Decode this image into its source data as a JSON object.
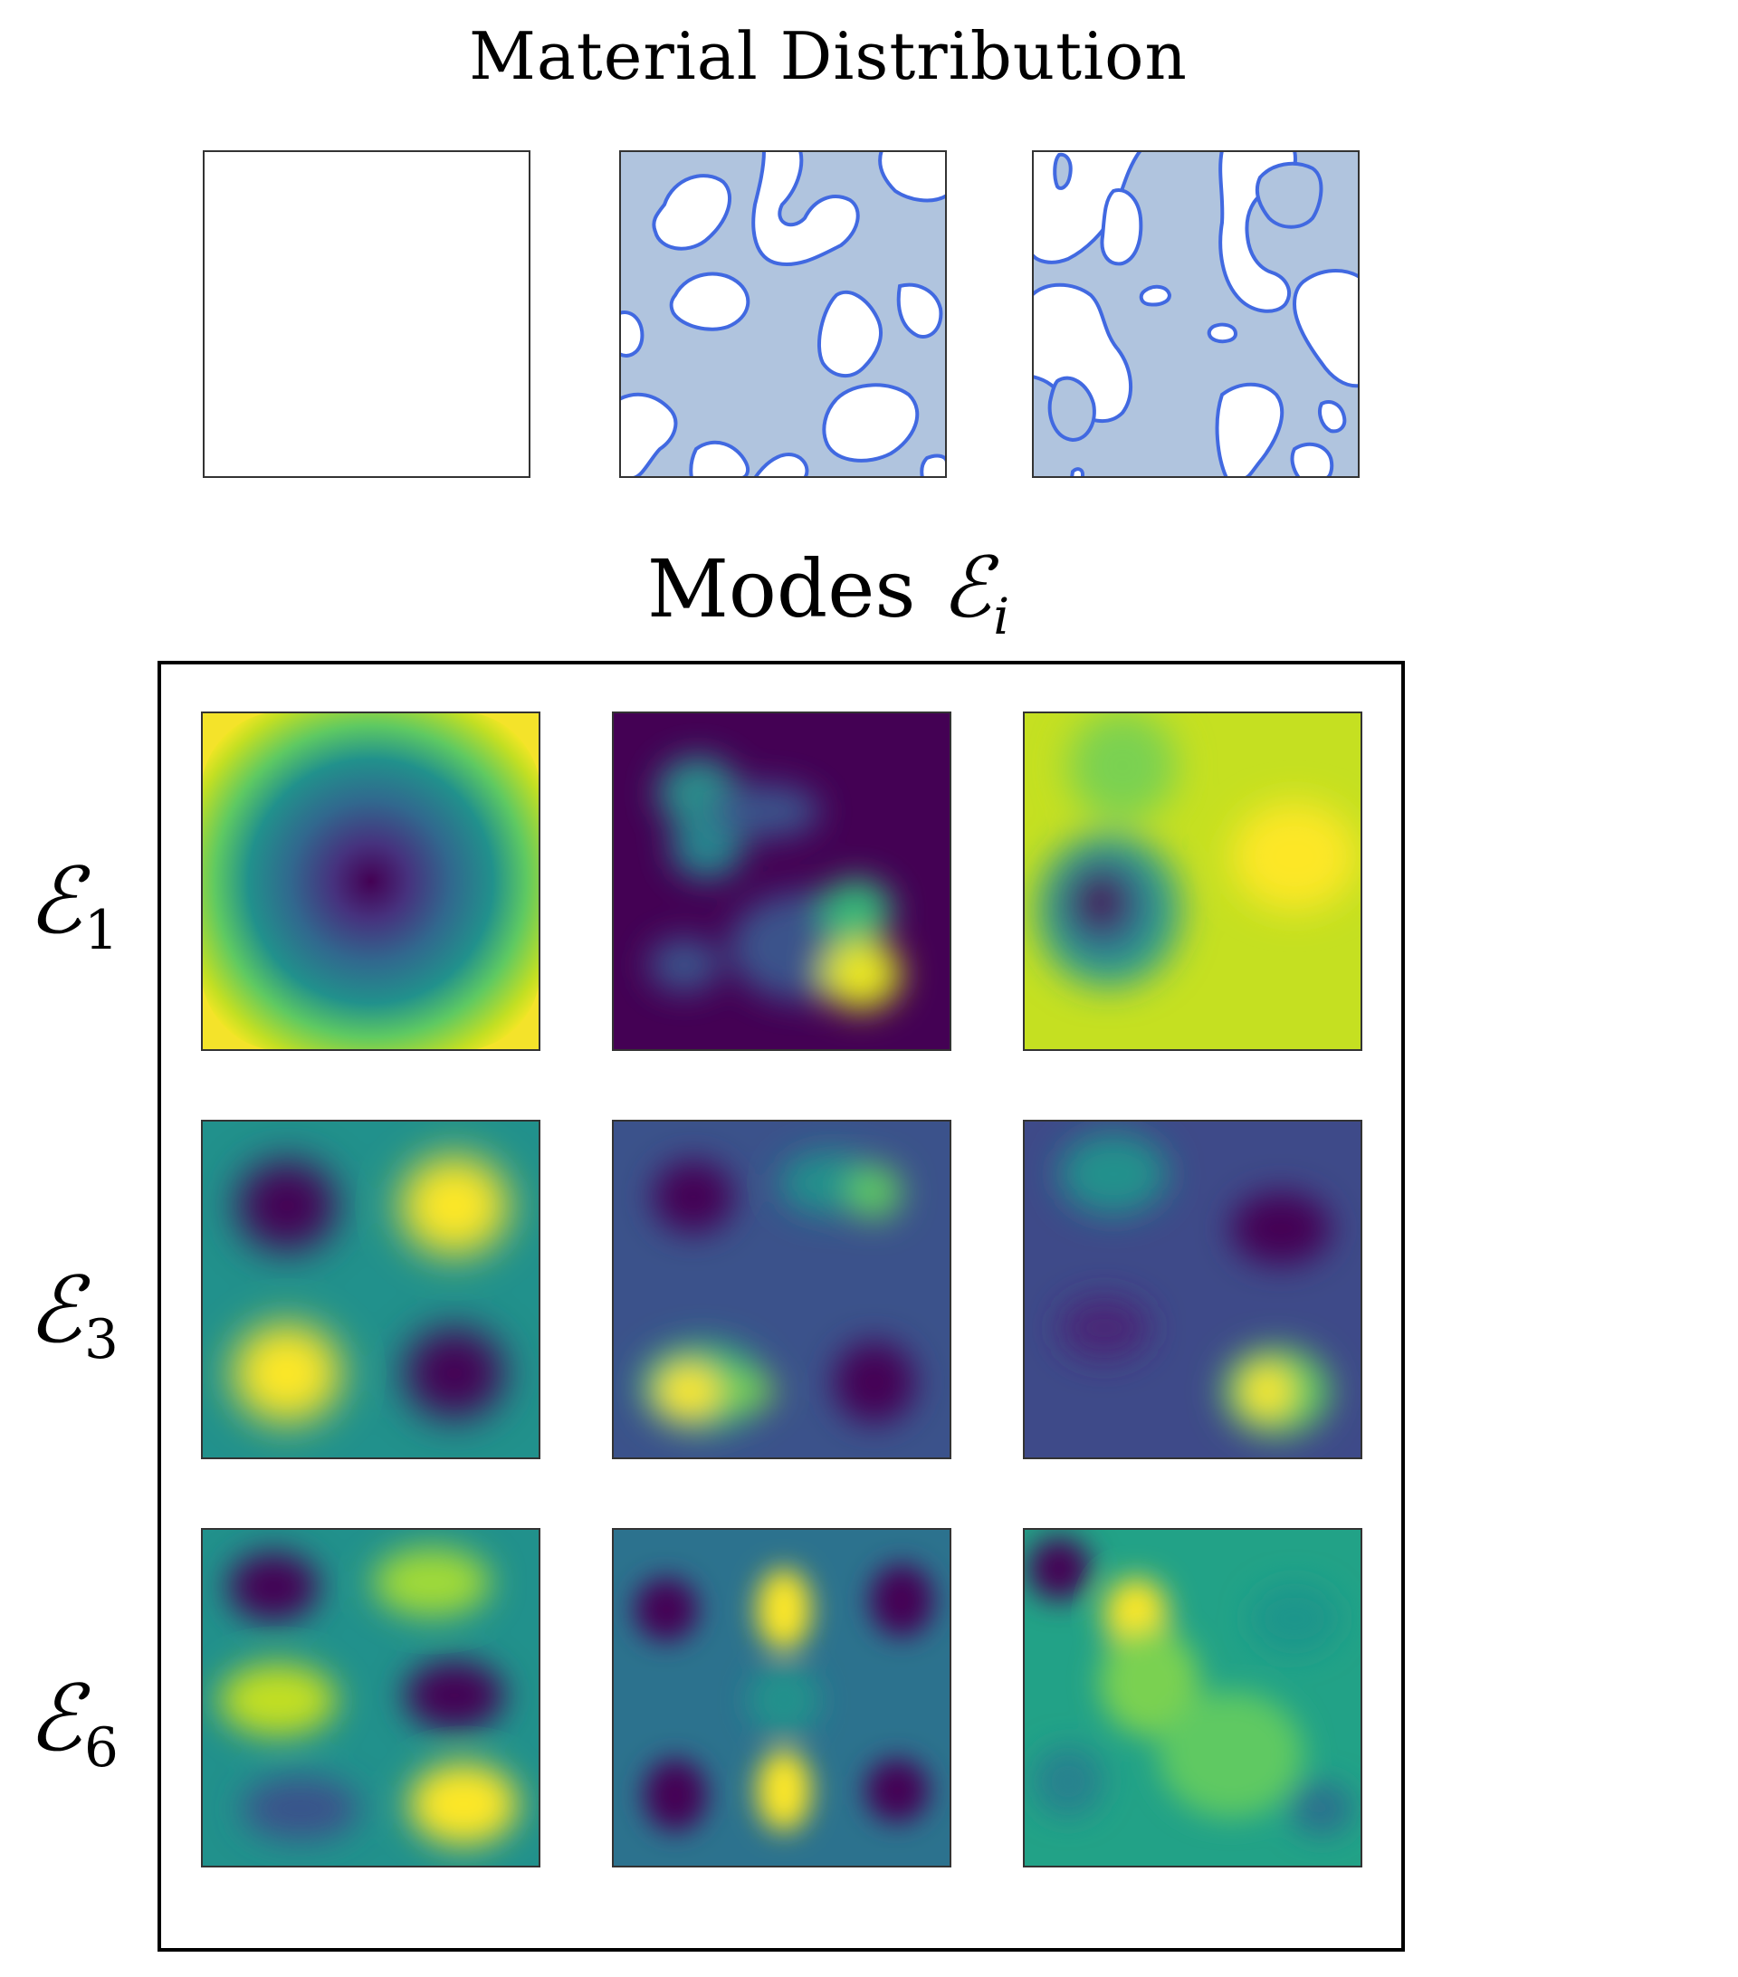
{
  "titles": {
    "material": "Material Distribution",
    "modes_prefix": "Modes",
    "modes_symbol": "ℰ",
    "modes_sub": "i"
  },
  "row_labels": [
    {
      "symbol": "ℰ",
      "sub": "1"
    },
    {
      "symbol": "ℰ",
      "sub": "3"
    },
    {
      "symbol": "ℰ",
      "sub": "6"
    }
  ],
  "colors": {
    "material_fill": "#b0c4de",
    "material_edge": "#4169e1",
    "panel_border": "#000000",
    "colormap": "viridis"
  },
  "material_panels": [
    {
      "name": "empty"
    },
    {
      "name": "pattern-a"
    },
    {
      "name": "pattern-b"
    }
  ],
  "mode_panels": [
    [
      "mode-1-col-1",
      "mode-1-col-2",
      "mode-1-col-3"
    ],
    [
      "mode-3-col-1",
      "mode-3-col-2",
      "mode-3-col-3"
    ],
    [
      "mode-6-col-1",
      "mode-6-col-2",
      "mode-6-col-3"
    ]
  ]
}
